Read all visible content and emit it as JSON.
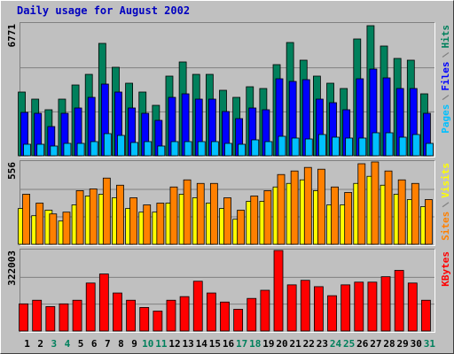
{
  "chart_data": [
    {
      "type": "bar",
      "title": "Daily usage for August 2002",
      "ylim": [
        0,
        6771
      ],
      "yticks": [
        6771
      ],
      "grid": true,
      "series": [
        {
          "name": "Hits",
          "color": "#00805c",
          "values": [
            3272,
            2908,
            2363,
            2908,
            3635,
            4180,
            5771,
            4544,
            3726,
            3272,
            2590,
            4090,
            4817,
            4180,
            4180,
            3363,
            2999,
            3544,
            3454,
            4680,
            5816,
            4908,
            4090,
            3726,
            3454,
            5998,
            6680,
            5635,
            4998,
            4908,
            3181
          ]
        },
        {
          "name": "Files",
          "color": "#0000ff",
          "values": [
            2227,
            2181,
            1500,
            2181,
            2454,
            2999,
            3681,
            3272,
            2454,
            2181,
            1818,
            2999,
            3181,
            2908,
            2908,
            2272,
            1908,
            2454,
            2363,
            3953,
            3817,
            3908,
            2908,
            2726,
            2363,
            3953,
            4453,
            3999,
            3454,
            3454,
            2181
          ]
        },
        {
          "name": "Pages",
          "color": "#00c0ff",
          "values": [
            591,
            591,
            500,
            636,
            636,
            727,
            1136,
            1045,
            682,
            727,
            500,
            727,
            727,
            727,
            727,
            636,
            591,
            818,
            727,
            1000,
            909,
            863,
            1091,
            954,
            909,
            909,
            1181,
            1181,
            954,
            1091,
            636
          ]
        }
      ]
    },
    {
      "type": "bar",
      "ylim": [
        0,
        556
      ],
      "yticks": [
        556
      ],
      "grid": true,
      "series": [
        {
          "name": "Visits",
          "color": "#ffff00",
          "values": [
            242,
            193,
            230,
            157,
            266,
            326,
            338,
            314,
            242,
            217,
            217,
            278,
            338,
            314,
            278,
            242,
            169,
            290,
            290,
            387,
            411,
            435,
            362,
            266,
            266,
            411,
            459,
            399,
            338,
            302,
            254
          ]
        },
        {
          "name": "Sites",
          "color": "#ff8000",
          "values": [
            338,
            278,
            205,
            217,
            362,
            374,
            447,
            399,
            314,
            266,
            278,
            387,
            435,
            411,
            411,
            314,
            230,
            326,
            362,
            471,
            495,
            519,
            507,
            387,
            350,
            544,
            556,
            495,
            435,
            411,
            302
          ]
        }
      ]
    },
    {
      "type": "bar",
      "ylim": [
        0,
        322003
      ],
      "yticks": [
        322003
      ],
      "grid": true,
      "categories": [
        "1",
        "2",
        "3",
        "4",
        "5",
        "6",
        "7",
        "8",
        "9",
        "10",
        "11",
        "12",
        "13",
        "14",
        "15",
        "16",
        "17",
        "18",
        "19",
        "20",
        "21",
        "22",
        "23",
        "24",
        "25",
        "26",
        "27",
        "28",
        "29",
        "30",
        "31"
      ],
      "category_colors": [
        "#000000",
        "#000000",
        "#00805c",
        "#00805c",
        "#000000",
        "#000000",
        "#000000",
        "#000000",
        "#000000",
        "#00805c",
        "#00805c",
        "#000000",
        "#000000",
        "#000000",
        "#000000",
        "#000000",
        "#00805c",
        "#00805c",
        "#000000",
        "#000000",
        "#000000",
        "#000000",
        "#000000",
        "#00805c",
        "#00805c",
        "#000000",
        "#000000",
        "#000000",
        "#000000",
        "#000000",
        "#00805c"
      ],
      "series": [
        {
          "name": "KBytes",
          "color": "#ff0000",
          "values": [
            108540,
            123012,
            97686,
            108540,
            123012,
            191754,
            227934,
            151956,
            123012,
            94068,
            79596,
            123012,
            137484,
            198990,
            151956,
            115776,
            86832,
            130248,
            162810,
            322003,
            184518,
            202608,
            177282,
            141102,
            184518,
            195372,
            195372,
            217080,
            242406,
            191754,
            123012
          ]
        }
      ]
    }
  ]
}
